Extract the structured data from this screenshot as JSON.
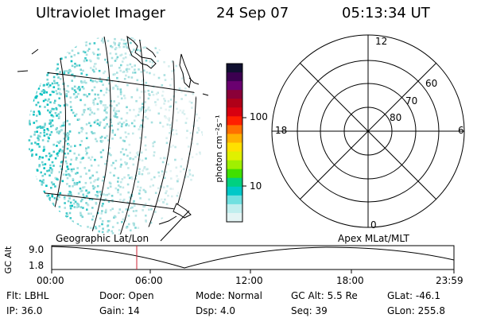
{
  "header": {
    "title": "Ultraviolet Imager",
    "date": "24 Sep 07",
    "time": "05:13:34 UT"
  },
  "colorbar": {
    "unit_label": "photon cm⁻²s⁻¹",
    "tick_labels": [
      "100",
      "10"
    ],
    "colors": [
      "#101030",
      "#3c0050",
      "#6a0070",
      "#8a0038",
      "#b00018",
      "#d80010",
      "#ff2000",
      "#ff7000",
      "#ffb000",
      "#ffe000",
      "#e0f000",
      "#a0f000",
      "#40e000",
      "#00d080",
      "#00c8c8",
      "#70e0e0",
      "#c0eeee",
      "#e4f4f4"
    ]
  },
  "polar_grid": {
    "mlt_labels": {
      "top": "12",
      "left": "18",
      "right": "6",
      "bottom": "0"
    },
    "lat_labels": [
      "60",
      "70",
      "80"
    ]
  },
  "altitude_panel": {
    "left_caption": "Geographic Lat/Lon",
    "right_caption": "Apex MLat/MLT",
    "ylabel": "GC Alt",
    "yticks": [
      "9.0",
      "1.8"
    ],
    "xticks": [
      "00:00",
      "06:00",
      "12:00",
      "18:00",
      "23:59"
    ]
  },
  "status": {
    "row1": [
      {
        "label": "Flt:",
        "value": "LBHL"
      },
      {
        "label": "Door:",
        "value": "Open"
      },
      {
        "label": "Mode:",
        "value": "Normal"
      },
      {
        "label": "GC Alt:",
        "value": "5.5 Re"
      },
      {
        "label": "GLat:",
        "value": "-46.1"
      }
    ],
    "row2": [
      {
        "label": "IP:",
        "value": "36.0"
      },
      {
        "label": "Gain:",
        "value": "14"
      },
      {
        "label": "Dsp:",
        "value": "4.0"
      },
      {
        "label": "Seq:",
        "value": "39"
      },
      {
        "label": "GLon:",
        "value": "255.8"
      }
    ]
  }
}
